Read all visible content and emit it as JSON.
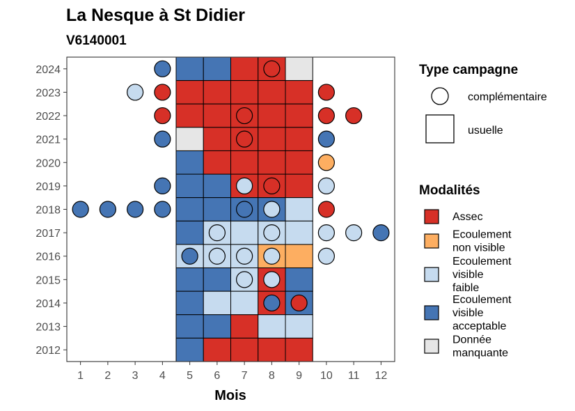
{
  "chart_data": {
    "type": "heatmap",
    "title": "La Nesque à St Didier",
    "subtitle": "V6140001",
    "xlabel": "Mois",
    "ylabel": "",
    "x_ticks": [
      "1",
      "2",
      "3",
      "4",
      "5",
      "6",
      "7",
      "8",
      "9",
      "10",
      "11",
      "12"
    ],
    "y_ticks": [
      "2012",
      "2013",
      "2014",
      "2015",
      "2016",
      "2017",
      "2018",
      "2019",
      "2020",
      "2021",
      "2022",
      "2023",
      "2024"
    ],
    "xlim": [
      0.5,
      12.5
    ],
    "ylim": [
      2011.5,
      2024.5
    ],
    "grid": false,
    "colors": {
      "Assec": "#d73027",
      "Ecoulement non visible": "#fdae61",
      "Ecoulement visible faible": "#c6dbef",
      "Ecoulement visible acceptable": "#4575b4",
      "Donnée manquante": "#e6e6e6"
    },
    "legend_type": {
      "title": "Type campagne",
      "items": [
        {
          "label": "complémentaire",
          "shape": "circle"
        },
        {
          "label": "usuelle",
          "shape": "square"
        }
      ]
    },
    "legend_modalites": {
      "title": "Modalités",
      "items": [
        {
          "key": "Assec",
          "lines": [
            "Assec"
          ]
        },
        {
          "key": "Ecoulement non visible",
          "lines": [
            "Ecoulement",
            "non visible"
          ]
        },
        {
          "key": "Ecoulement visible faible",
          "lines": [
            "Ecoulement",
            "visible",
            "faible"
          ]
        },
        {
          "key": "Ecoulement visible acceptable",
          "lines": [
            "Ecoulement",
            "visible",
            "acceptable"
          ]
        },
        {
          "key": "Donnée manquante",
          "lines": [
            "Donnée",
            "manquante"
          ]
        }
      ]
    },
    "usuelle": [
      {
        "year": 2024,
        "months": [
          "Ecoulement visible acceptable",
          "Ecoulement visible acceptable",
          "Assec",
          "Assec",
          "Donnée manquante"
        ]
      },
      {
        "year": 2023,
        "months": [
          "Assec",
          "Assec",
          "Assec",
          "Assec",
          "Assec"
        ]
      },
      {
        "year": 2022,
        "months": [
          "Assec",
          "Assec",
          "Assec",
          "Assec",
          "Assec"
        ]
      },
      {
        "year": 2021,
        "months": [
          "Donnée manquante",
          "Assec",
          "Assec",
          "Assec",
          "Assec"
        ]
      },
      {
        "year": 2020,
        "months": [
          "Ecoulement visible acceptable",
          "Assec",
          "Assec",
          "Assec",
          "Assec"
        ]
      },
      {
        "year": 2019,
        "months": [
          "Ecoulement visible acceptable",
          "Ecoulement visible acceptable",
          "Assec",
          "Assec",
          "Assec"
        ]
      },
      {
        "year": 2018,
        "months": [
          "Ecoulement visible acceptable",
          "Ecoulement visible acceptable",
          "Ecoulement visible acceptable",
          "Ecoulement visible acceptable",
          "Ecoulement visible faible"
        ]
      },
      {
        "year": 2017,
        "months": [
          "Ecoulement visible acceptable",
          "Ecoulement visible faible",
          "Ecoulement visible faible",
          "Ecoulement visible faible",
          "Ecoulement visible faible"
        ]
      },
      {
        "year": 2016,
        "months": [
          "Ecoulement visible faible",
          "Ecoulement visible faible",
          "Ecoulement visible faible",
          "Ecoulement non visible",
          "Ecoulement non visible"
        ]
      },
      {
        "year": 2015,
        "months": [
          "Ecoulement visible acceptable",
          "Ecoulement visible acceptable",
          "Ecoulement visible faible",
          "Assec",
          "Ecoulement visible acceptable"
        ]
      },
      {
        "year": 2014,
        "months": [
          "Ecoulement visible acceptable",
          "Ecoulement visible faible",
          "Ecoulement visible faible",
          "Assec",
          "Ecoulement visible acceptable"
        ]
      },
      {
        "year": 2013,
        "months": [
          "Ecoulement visible acceptable",
          "Ecoulement visible acceptable",
          "Assec",
          "Ecoulement visible faible",
          "Ecoulement visible faible"
        ]
      },
      {
        "year": 2012,
        "months": [
          "Ecoulement visible acceptable",
          "Assec",
          "Assec",
          "Assec",
          "Assec"
        ]
      }
    ],
    "usuelle_first_month": 5,
    "complementaire": [
      {
        "year": 2024,
        "month": 4,
        "value": "Ecoulement visible acceptable"
      },
      {
        "year": 2024,
        "month": 8,
        "value": "Assec"
      },
      {
        "year": 2023,
        "month": 3,
        "value": "Ecoulement visible faible"
      },
      {
        "year": 2023,
        "month": 4,
        "value": "Assec"
      },
      {
        "year": 2023,
        "month": 10,
        "value": "Assec"
      },
      {
        "year": 2022,
        "month": 4,
        "value": "Assec"
      },
      {
        "year": 2022,
        "month": 7,
        "value": "Assec"
      },
      {
        "year": 2022,
        "month": 10,
        "value": "Assec"
      },
      {
        "year": 2022,
        "month": 11,
        "value": "Assec"
      },
      {
        "year": 2021,
        "month": 4,
        "value": "Ecoulement visible acceptable"
      },
      {
        "year": 2021,
        "month": 7,
        "value": "Assec"
      },
      {
        "year": 2021,
        "month": 10,
        "value": "Ecoulement visible acceptable"
      },
      {
        "year": 2020,
        "month": 10,
        "value": "Ecoulement non visible"
      },
      {
        "year": 2019,
        "month": 4,
        "value": "Ecoulement visible acceptable"
      },
      {
        "year": 2019,
        "month": 7,
        "value": "Ecoulement visible faible"
      },
      {
        "year": 2019,
        "month": 8,
        "value": "Assec"
      },
      {
        "year": 2019,
        "month": 10,
        "value": "Ecoulement visible faible"
      },
      {
        "year": 2018,
        "month": 1,
        "value": "Ecoulement visible acceptable"
      },
      {
        "year": 2018,
        "month": 2,
        "value": "Ecoulement visible acceptable"
      },
      {
        "year": 2018,
        "month": 3,
        "value": "Ecoulement visible acceptable"
      },
      {
        "year": 2018,
        "month": 4,
        "value": "Ecoulement visible acceptable"
      },
      {
        "year": 2018,
        "month": 7,
        "value": "Ecoulement visible acceptable"
      },
      {
        "year": 2018,
        "month": 8,
        "value": "Ecoulement visible faible"
      },
      {
        "year": 2018,
        "month": 10,
        "value": "Assec"
      },
      {
        "year": 2017,
        "month": 6,
        "value": "Ecoulement visible faible"
      },
      {
        "year": 2017,
        "month": 8,
        "value": "Ecoulement visible faible"
      },
      {
        "year": 2017,
        "month": 10,
        "value": "Ecoulement visible faible"
      },
      {
        "year": 2017,
        "month": 11,
        "value": "Ecoulement visible faible"
      },
      {
        "year": 2017,
        "month": 12,
        "value": "Ecoulement visible acceptable"
      },
      {
        "year": 2016,
        "month": 5,
        "value": "Ecoulement visible acceptable"
      },
      {
        "year": 2016,
        "month": 6,
        "value": "Ecoulement visible faible"
      },
      {
        "year": 2016,
        "month": 7,
        "value": "Ecoulement visible faible"
      },
      {
        "year": 2016,
        "month": 8,
        "value": "Ecoulement visible faible"
      },
      {
        "year": 2016,
        "month": 10,
        "value": "Ecoulement visible faible"
      },
      {
        "year": 2015,
        "month": 7,
        "value": "Ecoulement visible faible"
      },
      {
        "year": 2015,
        "month": 8,
        "value": "Ecoulement visible faible"
      },
      {
        "year": 2014,
        "month": 8,
        "value": "Ecoulement visible acceptable"
      },
      {
        "year": 2014,
        "month": 9,
        "value": "Assec"
      }
    ]
  }
}
